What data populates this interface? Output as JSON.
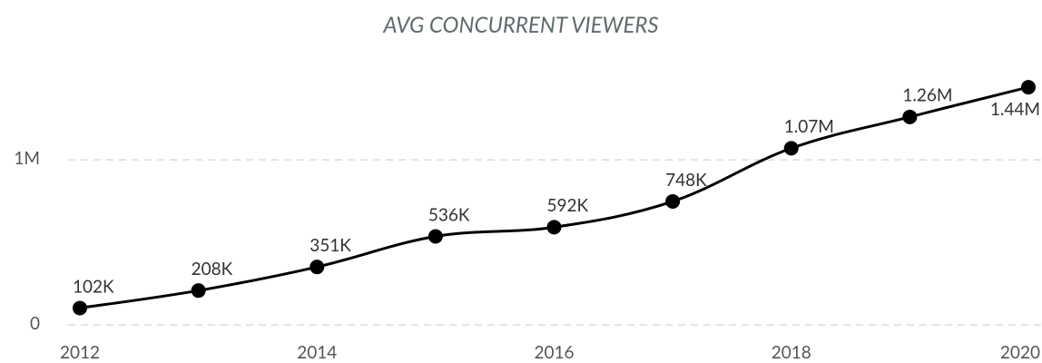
{
  "chart_data": {
    "type": "line",
    "title": "AVG CONCURRENT VIEWERS",
    "x": [
      2012,
      2013,
      2014,
      2015,
      2016,
      2017,
      2018,
      2019,
      2020
    ],
    "series": [
      {
        "name": "Avg concurrent viewers",
        "color": "#000000",
        "values": [
          102000,
          208000,
          351000,
          536000,
          592000,
          748000,
          1070000,
          1260000,
          1440000
        ],
        "value_labels": [
          "102K",
          "208K",
          "351K",
          "536K",
          "592K",
          "748K",
          "1.07M",
          "1.26M",
          "1.44M"
        ]
      }
    ],
    "xlim": [
      2012,
      2020
    ],
    "xticks": [
      2012,
      2014,
      2016,
      2018,
      2020
    ],
    "ylim": [
      0,
      1600000
    ],
    "yticks": [
      0,
      {
        "value": 1000000,
        "label": "1M"
      }
    ],
    "grid": true
  }
}
